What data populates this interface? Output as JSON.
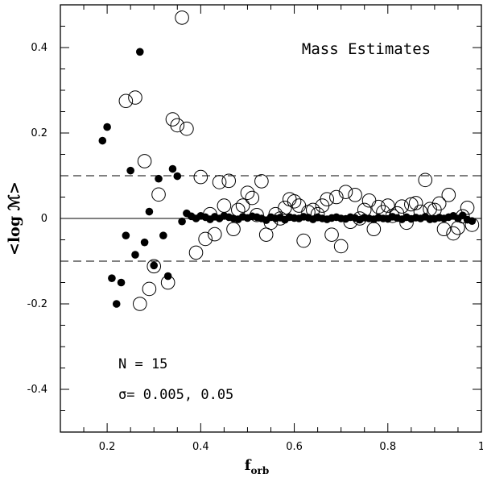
{
  "chart_data": {
    "type": "scatter",
    "title": "Mass Estimates",
    "xlabel": "f",
    "xlabel_sub": "orb",
    "ylabel": "<log ℳ>",
    "xlim": [
      0.1,
      1.0
    ],
    "ylim": [
      -0.5,
      0.5
    ],
    "x_ticks": [
      0.2,
      0.4,
      0.6,
      0.8,
      1.0
    ],
    "x_tick_labels": [
      "0.2",
      "0.4",
      "0.6",
      "0.8",
      "1"
    ],
    "y_ticks": [
      0.4,
      0.2,
      0,
      -0.2,
      -0.4
    ],
    "y_tick_labels": [
      "0.4",
      "0.2",
      "0",
      "-0.2",
      "-0.4"
    ],
    "reference_lines": [
      {
        "y": 0,
        "style": "solid"
      },
      {
        "y": 0.1,
        "style": "dashed"
      },
      {
        "y": -0.1,
        "style": "dashed"
      }
    ],
    "annotations": {
      "n_label": "N  =  15",
      "sigma_label": "σ=  0.005,  0.05"
    },
    "series": [
      {
        "name": "filled",
        "marker": "filled-circle",
        "color": "#000000",
        "points": [
          [
            0.19,
            0.182
          ],
          [
            0.2,
            0.214
          ],
          [
            0.21,
            -0.14
          ],
          [
            0.22,
            -0.2
          ],
          [
            0.23,
            -0.15
          ],
          [
            0.24,
            -0.04
          ],
          [
            0.25,
            0.112
          ],
          [
            0.26,
            -0.085
          ],
          [
            0.27,
            0.39
          ],
          [
            0.28,
            -0.056
          ],
          [
            0.29,
            0.016
          ],
          [
            0.3,
            -0.11
          ],
          [
            0.31,
            0.093
          ],
          [
            0.32,
            -0.04
          ],
          [
            0.33,
            -0.135
          ],
          [
            0.34,
            0.116
          ],
          [
            0.35,
            0.099
          ],
          [
            0.36,
            -0.007
          ],
          [
            0.37,
            0.012
          ],
          [
            0.38,
            0.005
          ],
          [
            0.39,
            0.0
          ],
          [
            0.4,
            0.006
          ],
          [
            0.41,
            0.003
          ],
          [
            0.42,
            -0.002
          ],
          [
            0.43,
            0.004
          ],
          [
            0.44,
            0.0
          ],
          [
            0.45,
            0.006
          ],
          [
            0.46,
            0.003
          ],
          [
            0.47,
            0.0
          ],
          [
            0.48,
            -0.002
          ],
          [
            0.49,
            0.004
          ],
          [
            0.5,
            0.001
          ],
          [
            0.51,
            0.005
          ],
          [
            0.52,
            0.003
          ],
          [
            0.53,
            0.0
          ],
          [
            0.54,
            -0.004
          ],
          [
            0.55,
            0.003
          ],
          [
            0.56,
            0.0
          ],
          [
            0.57,
            0.002
          ],
          [
            0.58,
            -0.003
          ],
          [
            0.59,
            0.003
          ],
          [
            0.6,
            0.001
          ],
          [
            0.61,
            0.0
          ],
          [
            0.62,
            0.004
          ],
          [
            0.63,
            0.002
          ],
          [
            0.64,
            -0.002
          ],
          [
            0.65,
            0.003
          ],
          [
            0.66,
            0.0
          ],
          [
            0.67,
            -0.002
          ],
          [
            0.68,
            0.001
          ],
          [
            0.69,
            0.003
          ],
          [
            0.7,
            0.0
          ],
          [
            0.71,
            -0.001
          ],
          [
            0.72,
            0.003
          ],
          [
            0.73,
            0.001
          ],
          [
            0.74,
            -0.003
          ],
          [
            0.75,
            0.002
          ],
          [
            0.76,
            0.0
          ],
          [
            0.77,
            -0.002
          ],
          [
            0.78,
            0.002
          ],
          [
            0.79,
            0.0
          ],
          [
            0.8,
            -0.001
          ],
          [
            0.81,
            0.004
          ],
          [
            0.82,
            0.001
          ],
          [
            0.83,
            -0.002
          ],
          [
            0.84,
            0.003
          ],
          [
            0.85,
            -0.001
          ],
          [
            0.86,
            0.002
          ],
          [
            0.87,
            0.0
          ],
          [
            0.88,
            0.004
          ],
          [
            0.89,
            -0.002
          ],
          [
            0.9,
            -0.001
          ],
          [
            0.91,
            0.002
          ],
          [
            0.92,
            0.0
          ],
          [
            0.93,
            0.003
          ],
          [
            0.94,
            0.006
          ],
          [
            0.95,
            0.0
          ],
          [
            0.96,
            0.007
          ],
          [
            0.97,
            -0.003
          ],
          [
            0.98,
            -0.006
          ]
        ]
      },
      {
        "name": "open",
        "marker": "open-circle",
        "color": "#000000",
        "points": [
          [
            0.24,
            0.275
          ],
          [
            0.26,
            0.283
          ],
          [
            0.27,
            -0.2
          ],
          [
            0.28,
            0.134
          ],
          [
            0.29,
            -0.165
          ],
          [
            0.3,
            -0.112
          ],
          [
            0.31,
            0.056
          ],
          [
            0.33,
            -0.15
          ],
          [
            0.34,
            0.232
          ],
          [
            0.35,
            0.218
          ],
          [
            0.36,
            0.47
          ],
          [
            0.37,
            0.21
          ],
          [
            0.39,
            -0.08
          ],
          [
            0.4,
            0.097
          ],
          [
            0.41,
            -0.048
          ],
          [
            0.42,
            0.01
          ],
          [
            0.43,
            -0.037
          ],
          [
            0.44,
            0.085
          ],
          [
            0.45,
            0.03
          ],
          [
            0.46,
            0.088
          ],
          [
            0.47,
            -0.025
          ],
          [
            0.48,
            0.02
          ],
          [
            0.49,
            0.03
          ],
          [
            0.5,
            0.06
          ],
          [
            0.51,
            0.048
          ],
          [
            0.52,
            0.008
          ],
          [
            0.53,
            0.087
          ],
          [
            0.54,
            -0.038
          ],
          [
            0.55,
            -0.01
          ],
          [
            0.56,
            0.01
          ],
          [
            0.57,
            0.0
          ],
          [
            0.58,
            0.025
          ],
          [
            0.59,
            0.045
          ],
          [
            0.6,
            0.04
          ],
          [
            0.61,
            0.03
          ],
          [
            0.62,
            -0.052
          ],
          [
            0.63,
            0.015
          ],
          [
            0.64,
            0.02
          ],
          [
            0.65,
            0.01
          ],
          [
            0.66,
            0.03
          ],
          [
            0.67,
            0.045
          ],
          [
            0.68,
            -0.038
          ],
          [
            0.69,
            0.05
          ],
          [
            0.7,
            -0.065
          ],
          [
            0.71,
            0.062
          ],
          [
            0.72,
            -0.008
          ],
          [
            0.73,
            0.055
          ],
          [
            0.74,
            0.0
          ],
          [
            0.75,
            0.02
          ],
          [
            0.76,
            0.042
          ],
          [
            0.77,
            -0.025
          ],
          [
            0.78,
            0.027
          ],
          [
            0.79,
            0.015
          ],
          [
            0.8,
            0.03
          ],
          [
            0.81,
            0.006
          ],
          [
            0.82,
            0.012
          ],
          [
            0.83,
            0.028
          ],
          [
            0.84,
            -0.01
          ],
          [
            0.85,
            0.033
          ],
          [
            0.86,
            0.036
          ],
          [
            0.87,
            0.016
          ],
          [
            0.88,
            0.09
          ],
          [
            0.89,
            0.022
          ],
          [
            0.9,
            0.02
          ],
          [
            0.91,
            0.035
          ],
          [
            0.92,
            -0.025
          ],
          [
            0.93,
            0.055
          ],
          [
            0.94,
            -0.035
          ],
          [
            0.95,
            -0.022
          ],
          [
            0.96,
            0.005
          ],
          [
            0.97,
            0.025
          ],
          [
            0.98,
            -0.015
          ]
        ]
      }
    ]
  }
}
